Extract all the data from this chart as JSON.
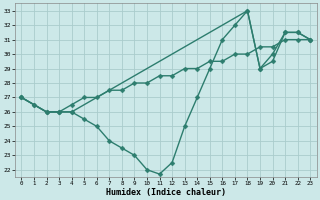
{
  "xlabel": "Humidex (Indice chaleur)",
  "bg_color": "#cce8e8",
  "line_color": "#2d7d6e",
  "grid_color": "#aacccc",
  "ylim": [
    21.5,
    33.5
  ],
  "xlim": [
    -0.5,
    23.5
  ],
  "yticks": [
    22,
    23,
    24,
    25,
    26,
    27,
    28,
    29,
    30,
    31,
    32,
    33
  ],
  "xticks": [
    0,
    1,
    2,
    3,
    4,
    5,
    6,
    7,
    8,
    9,
    10,
    11,
    12,
    13,
    14,
    15,
    16,
    17,
    18,
    19,
    20,
    21,
    22,
    23
  ],
  "series1_x": [
    0,
    1,
    2,
    3,
    4,
    5,
    6,
    7,
    8,
    9,
    10,
    11,
    12,
    13,
    14,
    15,
    16,
    17,
    18,
    19,
    20,
    21,
    22,
    23
  ],
  "series1_y": [
    27.0,
    26.5,
    26.0,
    26.0,
    26.5,
    27.0,
    27.0,
    27.5,
    27.5,
    28.0,
    28.0,
    28.5,
    28.5,
    29.0,
    29.0,
    29.5,
    29.5,
    30.0,
    30.0,
    30.5,
    30.5,
    31.0,
    31.0,
    31.0
  ],
  "series2_x": [
    0,
    1,
    2,
    3,
    4,
    5,
    6,
    7,
    8,
    9,
    10,
    11,
    12,
    13,
    14,
    15,
    16,
    17,
    18,
    19,
    20,
    21,
    22,
    23
  ],
  "series2_y": [
    27.0,
    26.5,
    26.0,
    26.0,
    26.0,
    25.5,
    25.0,
    24.0,
    23.5,
    23.0,
    22.0,
    21.7,
    22.5,
    25.0,
    27.0,
    29.0,
    31.0,
    32.0,
    33.0,
    29.0,
    29.5,
    31.5,
    31.5,
    31.0
  ],
  "series3_x": [
    0,
    2,
    3,
    4,
    18,
    19,
    20,
    21,
    22,
    23
  ],
  "series3_y": [
    27.0,
    26.0,
    26.0,
    26.0,
    33.0,
    29.0,
    30.0,
    31.5,
    31.5,
    31.0
  ],
  "marker": "D",
  "marker_size": 2.5,
  "linewidth": 1.0
}
